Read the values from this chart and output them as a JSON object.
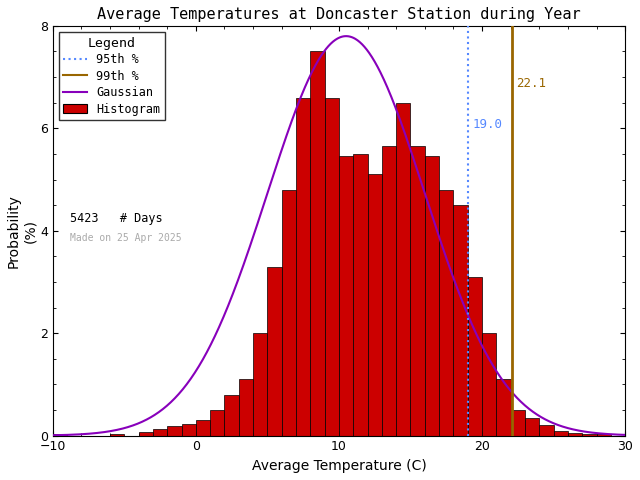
{
  "title": "Average Temperatures at Doncaster Station during Year",
  "xlabel": "Average Temperature (C)",
  "ylabel": "Probability\n(%)",
  "xlim": [
    -10,
    30
  ],
  "ylim": [
    0,
    8
  ],
  "bin_centers": [
    -9,
    -8,
    -7,
    -6,
    -5,
    -4,
    -3,
    -2,
    -1,
    0,
    1,
    2,
    3,
    4,
    5,
    6,
    7,
    8,
    9,
    10,
    11,
    12,
    13,
    14,
    15,
    16,
    17,
    18,
    19,
    20,
    21,
    22,
    23,
    24,
    25,
    26,
    27,
    28
  ],
  "hist_values": [
    0.04,
    0.0,
    0.0,
    0.0,
    0.0,
    0.0,
    0.0,
    0.0,
    0.08,
    0.12,
    0.22,
    0.35,
    0.5,
    0.7,
    1.0,
    2.0,
    3.3,
    4.8,
    6.6,
    7.5,
    6.6,
    5.45,
    5.45,
    5.1,
    4.8,
    6.5,
    5.65,
    5.45,
    4.8,
    4.5,
    3.1,
    2.0,
    1.1,
    0.5,
    0.35,
    0.2,
    0.1,
    0.05
  ],
  "gauss_mean": 10.5,
  "gauss_std": 5.5,
  "gauss_amplitude": 7.8,
  "percentile_95": 19.0,
  "percentile_99": 22.1,
  "n_days": 5423,
  "watermark": "Made on 25 Apr 2025",
  "hist_color": "#cc0000",
  "hist_edge_color": "#000000",
  "gauss_color": "#8800bb",
  "p95_color": "#5588ff",
  "p99_color": "#996600",
  "background_color": "#ffffff",
  "title_fontsize": 11,
  "axis_fontsize": 10,
  "tick_fontsize": 9
}
